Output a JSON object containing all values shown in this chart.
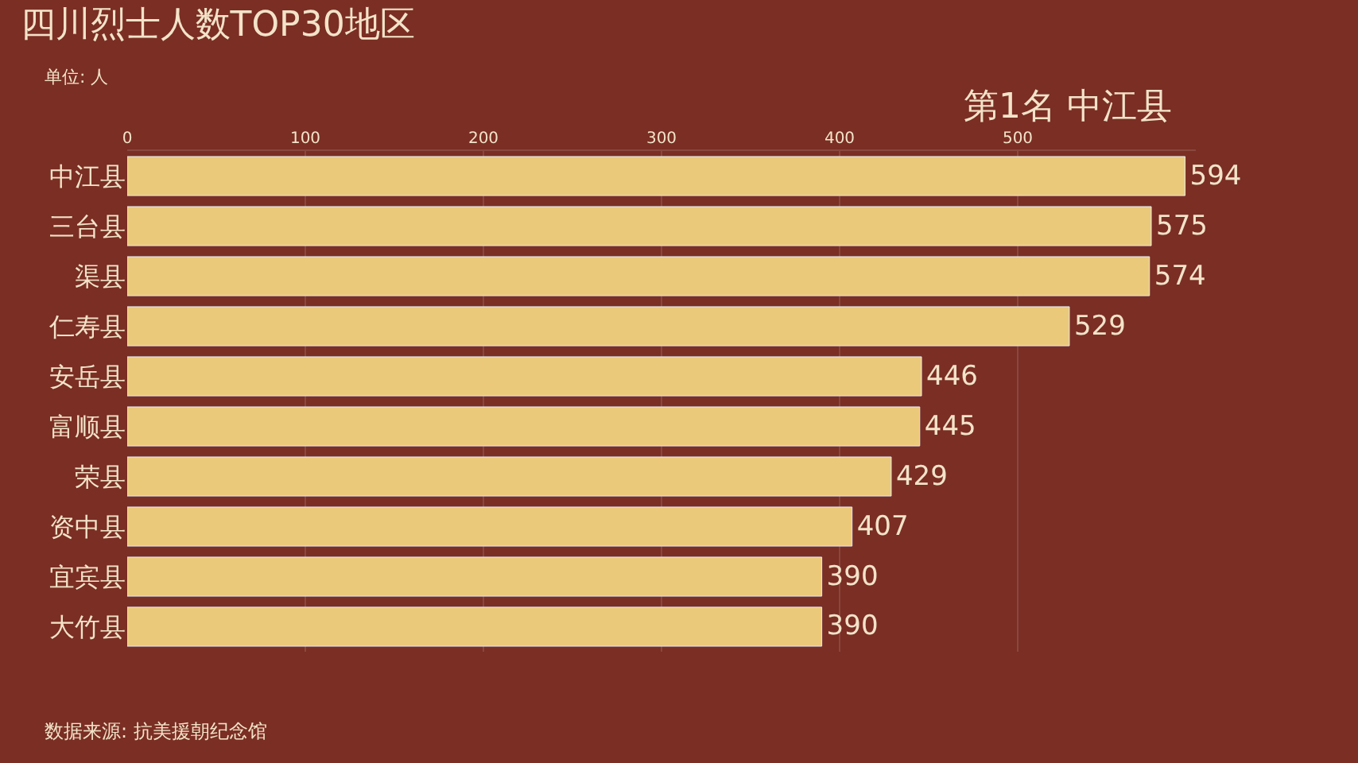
{
  "chart_data": {
    "type": "bar",
    "orientation": "horizontal",
    "title": "四川烈士人数TOP30地区",
    "subtitle": "单位: 人",
    "categories": [
      "中江县",
      "三台县",
      "渠县",
      "仁寿县",
      "安岳县",
      "富顺县",
      "荣县",
      "资中县",
      "宜宾县",
      "大竹县"
    ],
    "values": [
      594,
      575,
      574,
      529,
      446,
      445,
      429,
      407,
      390,
      390
    ],
    "color": "#ebc97a",
    "data_labels": true,
    "grid": "x",
    "xlim": [
      0,
      600
    ],
    "xticks": [
      0,
      100,
      200,
      300,
      400,
      500
    ],
    "annotations": [
      "第1名 中江县",
      "数据来源: 抗美援朝纪念馆"
    ]
  }
}
